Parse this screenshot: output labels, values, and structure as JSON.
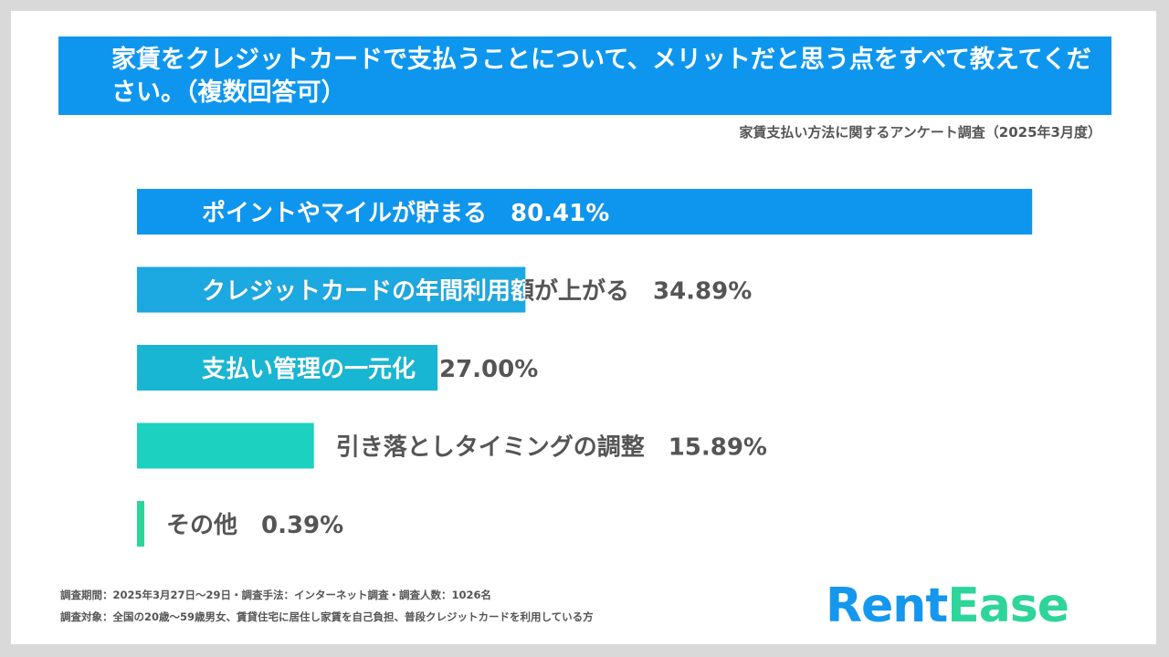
{
  "header": {
    "question": "家賃をクレジットカードで支払うことについて、メリットだと思う点をすべて教えてください。（複数回答可）",
    "survey_title": "家賃支払い方法に関するアンケート調査（2025年3月度）"
  },
  "chart_data": {
    "type": "bar",
    "orientation": "horizontal",
    "categories": [
      "ポイントやマイルが貯まる",
      "クレジットカードの年間利用額が上がる",
      "支払い管理の一元化",
      "引き落としタイミングの調整",
      "その他"
    ],
    "values": [
      80.41,
      34.89,
      27.0,
      15.89,
      0.39
    ],
    "value_labels": [
      "80.41%",
      "34.89%",
      "27.00%",
      "15.89%",
      "0.39%"
    ],
    "colors": [
      "#0e96ee",
      "#1ca8e0",
      "#18b6d2",
      "#1cd1bf",
      "#2ed59a"
    ],
    "xlim": [
      0,
      100
    ]
  },
  "footer": {
    "period": "調査期間：2025年3月27日〜29日・調査手法：インターネット調査・調査人数：1026名",
    "target": "調査対象：全国の20歳〜59歳男女、賃貸住宅に居住し家賃を自己負担、普段クレジットカードを利用している方"
  },
  "logo": {
    "part1": "Rent",
    "part2": "Ease"
  }
}
